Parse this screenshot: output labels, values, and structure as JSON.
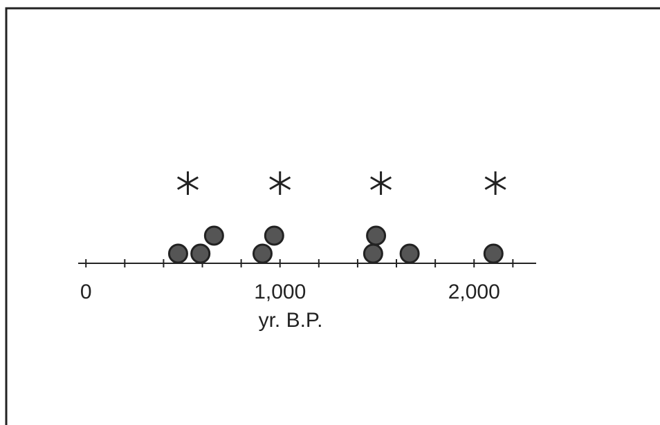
{
  "chart_data": {
    "type": "scatter",
    "x": [
      475,
      590,
      660,
      910,
      970,
      1480,
      1495,
      1668,
      2100
    ],
    "color": "#555555",
    "marker_x": [
      525,
      1000,
      1520,
      2110
    ],
    "xlabel": "yr. B.P.",
    "xlim": [
      -40,
      2320
    ],
    "xticks": [
      0,
      {
        "value": 1000,
        "label": "1,000"
      },
      {
        "value": 2000,
        "label": "2,000"
      }
    ],
    "xminor_ticks": [
      200,
      400,
      600,
      800,
      1200,
      1400,
      1600,
      1800,
      2200
    ]
  }
}
